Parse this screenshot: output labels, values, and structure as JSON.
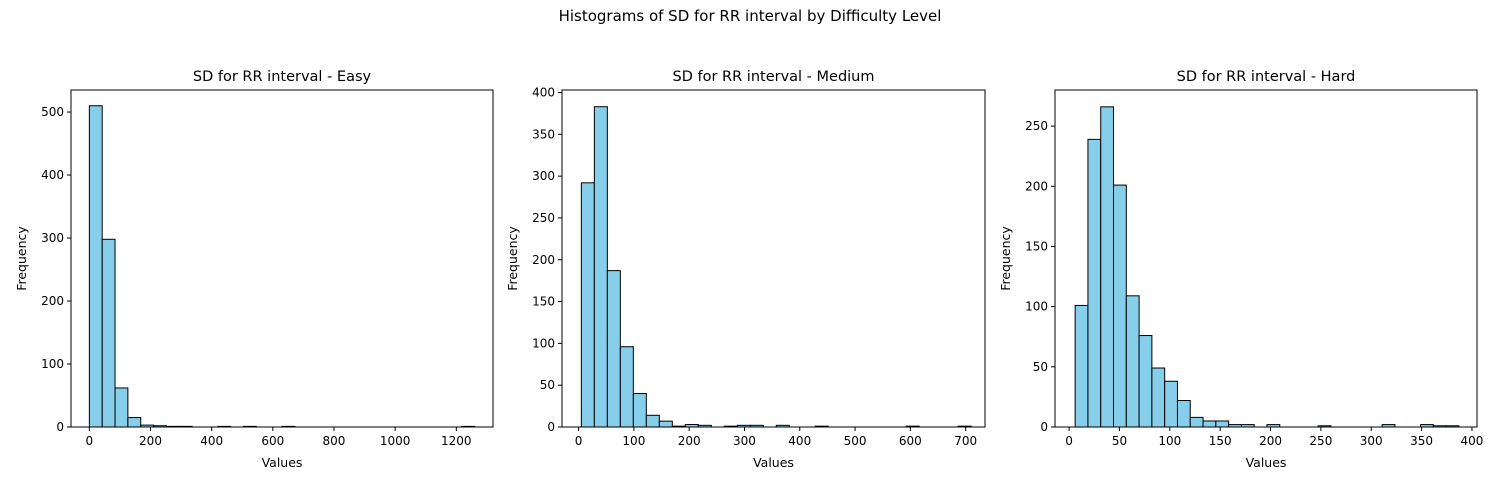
{
  "suptitle": "Histograms of SD for RR interval by Difficulty Level",
  "style": {
    "bar_fill": "#87ceeb",
    "bar_edge": "#000000"
  },
  "chart_data": [
    {
      "type": "bar",
      "title": "SD for RR interval - Easy",
      "xlabel": "Values",
      "ylabel": "Frequency",
      "xlim": [
        -60,
        1320
      ],
      "ylim": [
        0,
        535
      ],
      "xticks": [
        0,
        200,
        400,
        600,
        800,
        1000,
        1200
      ],
      "yticks": [
        0,
        100,
        200,
        300,
        400,
        500
      ],
      "bin_edges": [
        0,
        42,
        84,
        126,
        168,
        210,
        252,
        294,
        336,
        378,
        420,
        462,
        504,
        546,
        588,
        630,
        672,
        714,
        756,
        798,
        840,
        882,
        924,
        966,
        1008,
        1050,
        1092,
        1134,
        1176,
        1218,
        1260
      ],
      "values": [
        510,
        298,
        62,
        15,
        3,
        2,
        1,
        1,
        0,
        0,
        1,
        0,
        1,
        0,
        0,
        1,
        0,
        0,
        0,
        0,
        0,
        0,
        0,
        0,
        0,
        0,
        0,
        0,
        0,
        1
      ]
    },
    {
      "type": "bar",
      "title": "SD for RR interval - Medium",
      "xlabel": "Values",
      "ylabel": "Frequency",
      "xlim": [
        -30,
        735
      ],
      "ylim": [
        0,
        403
      ],
      "xticks": [
        0,
        100,
        200,
        300,
        400,
        500,
        600,
        700
      ],
      "yticks": [
        0,
        50,
        100,
        150,
        200,
        250,
        300,
        350,
        400
      ],
      "bin_edges": [
        5,
        28.5,
        52,
        75.5,
        99,
        122.5,
        146,
        169.5,
        193,
        216.5,
        240,
        263.5,
        287,
        310.5,
        334,
        357.5,
        381,
        404.5,
        428,
        451.5,
        475,
        498.5,
        522,
        545.5,
        569,
        592.5,
        616,
        639.5,
        663,
        686.5,
        710
      ],
      "values": [
        292,
        383,
        187,
        96,
        40,
        14,
        7,
        1,
        3,
        2,
        0,
        1,
        2,
        2,
        0,
        2,
        0,
        0,
        1,
        0,
        0,
        0,
        0,
        0,
        0,
        1,
        0,
        0,
        0,
        1
      ]
    },
    {
      "type": "bar",
      "title": "SD for RR interval - Hard",
      "xlabel": "Values",
      "ylabel": "Frequency",
      "xlim": [
        -14,
        405
      ],
      "ylim": [
        0,
        280
      ],
      "xticks": [
        0,
        50,
        100,
        150,
        200,
        250,
        300,
        350,
        400
      ],
      "yticks": [
        0,
        50,
        100,
        150,
        200,
        250
      ],
      "bin_edges": [
        6,
        18.7,
        31.4,
        44.1,
        56.8,
        69.5,
        82.2,
        94.9,
        107.6,
        120.3,
        133,
        145.7,
        158.4,
        171.1,
        183.8,
        196.5,
        209.2,
        221.9,
        234.6,
        247.3,
        260,
        272.7,
        285.4,
        298.1,
        310.8,
        323.5,
        336.2,
        348.9,
        361.6,
        374.3,
        387
      ],
      "values": [
        101,
        239,
        266,
        201,
        109,
        76,
        49,
        38,
        22,
        8,
        5,
        5,
        2,
        2,
        0,
        2,
        0,
        0,
        0,
        1,
        0,
        0,
        0,
        0,
        2,
        0,
        0,
        2,
        1,
        1
      ]
    }
  ]
}
